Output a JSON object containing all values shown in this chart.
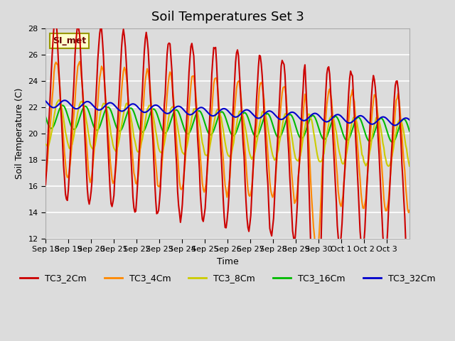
{
  "title": "Soil Temperatures Set 3",
  "xlabel": "Time",
  "ylabel": "Soil Temperature (C)",
  "ylim": [
    12,
    28
  ],
  "background_color": "#dcdcdc",
  "annotation_text": "SI_met",
  "annotation_bg": "#ffffcc",
  "annotation_border": "#999900",
  "series": {
    "TC3_2Cm": {
      "color": "#cc0000",
      "lw": 1.5
    },
    "TC3_4Cm": {
      "color": "#ff8800",
      "lw": 1.5
    },
    "TC3_8Cm": {
      "color": "#cccc00",
      "lw": 1.5
    },
    "TC3_16Cm": {
      "color": "#00bb00",
      "lw": 1.5
    },
    "TC3_32Cm": {
      "color": "#0000cc",
      "lw": 1.5
    }
  },
  "xtick_labels": [
    "Sep 18",
    "Sep 19",
    "Sep 20",
    "Sep 21",
    "Sep 22",
    "Sep 23",
    "Sep 24",
    "Sep 25",
    "Sep 26",
    "Sep 27",
    "Sep 28",
    "Sep 29",
    "Sep 30",
    "Oct 1",
    "Oct 2",
    "Oct 3"
  ],
  "ytick_labels": [
    "12",
    "14",
    "16",
    "18",
    "20",
    "22",
    "24",
    "26",
    "28"
  ],
  "ytick_values": [
    12,
    14,
    16,
    18,
    20,
    22,
    24,
    26,
    28
  ],
  "title_fontsize": 13,
  "label_fontsize": 9,
  "tick_fontsize": 8
}
